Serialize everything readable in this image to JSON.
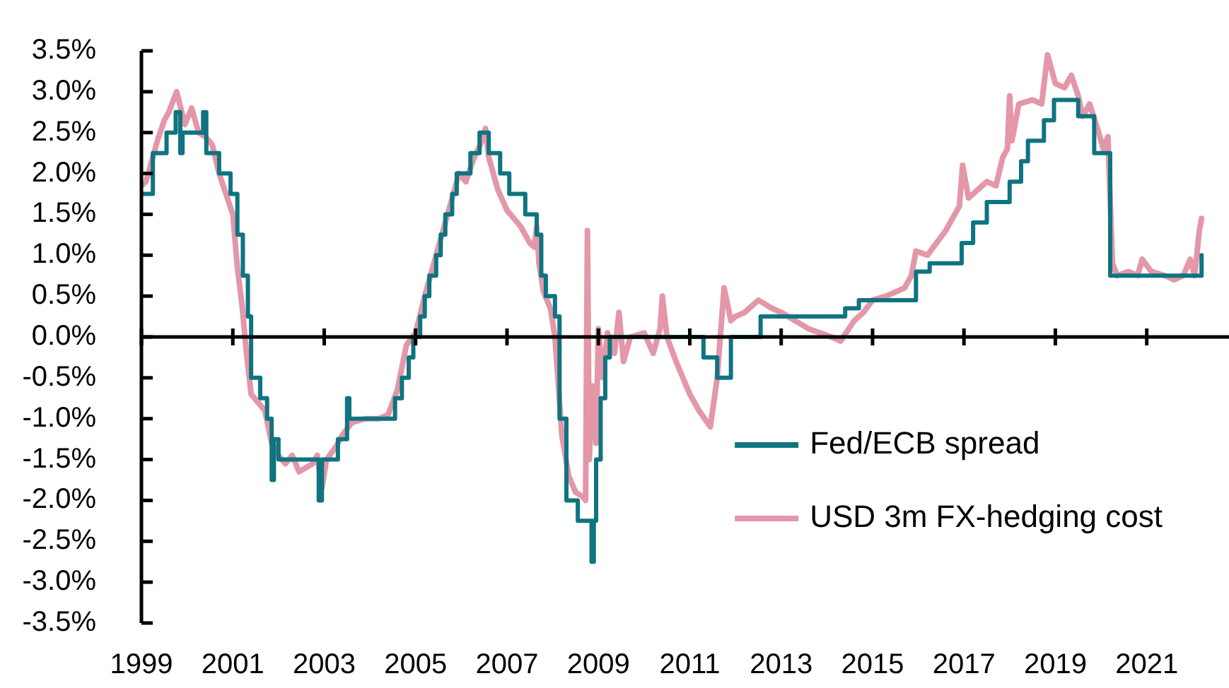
{
  "chart_data": {
    "type": "line",
    "xlim": [
      1999,
      2022.8
    ],
    "xticks": [
      1999,
      2001,
      2003,
      2005,
      2007,
      2009,
      2011,
      2013,
      2015,
      2017,
      2019,
      2021
    ],
    "ylim": [
      -3.5,
      3.5
    ],
    "yticks": [
      {
        "value": -3.5,
        "label": "-3.5%"
      },
      {
        "value": -3.0,
        "label": "-3.0%"
      },
      {
        "value": -2.5,
        "label": "-2.5%"
      },
      {
        "value": -2.0,
        "label": "-2.0%"
      },
      {
        "value": -1.5,
        "label": "-1.5%"
      },
      {
        "value": -1.0,
        "label": "-1.0%"
      },
      {
        "value": -0.5,
        "label": "-0.5%"
      },
      {
        "value": 0.0,
        "label": "0.0%"
      },
      {
        "value": 0.5,
        "label": "0.5%"
      },
      {
        "value": 1.0,
        "label": "1.0%"
      },
      {
        "value": 1.5,
        "label": "1.5%"
      },
      {
        "value": 2.0,
        "label": "2.0%"
      },
      {
        "value": 2.5,
        "label": "2.5%"
      },
      {
        "value": 3.0,
        "label": "3.0%"
      },
      {
        "value": 3.5,
        "label": "3.5%"
      }
    ],
    "grid": false,
    "ref_lines": [
      {
        "axis": "y",
        "value": 0,
        "color": "#000000"
      }
    ],
    "legend": "bottom right",
    "marker": "none",
    "series": [
      {
        "name": "Fed/ECB spread",
        "type": "step",
        "color": "#0f7480",
        "x": [
          1999.0,
          1999.25,
          1999.55,
          1999.75,
          1999.85,
          1999.9,
          2000.35,
          2000.42,
          2000.7,
          2000.95,
          2001.1,
          2001.22,
          2001.33,
          2001.4,
          2001.6,
          2001.75,
          2001.85,
          2001.9,
          2002.0,
          2002.88,
          2002.95,
          2003.3,
          2003.5,
          2003.55,
          2004.55,
          2004.7,
          2004.85,
          2004.95,
          2005.1,
          2005.2,
          2005.3,
          2005.45,
          2005.55,
          2005.65,
          2005.8,
          2005.9,
          2006.2,
          2006.4,
          2006.6,
          2006.85,
          2007.05,
          2007.4,
          2007.65,
          2007.75,
          2007.85,
          2008.05,
          2008.15,
          2008.3,
          2008.55,
          2008.85,
          2008.9,
          2008.95,
          2009.05,
          2009.15,
          2009.25,
          2011.3,
          2011.6,
          2011.9,
          2012.55,
          2014.4,
          2014.7,
          2015.95,
          2016.25,
          2016.95,
          2017.2,
          2017.5,
          2018.0,
          2018.25,
          2018.4,
          2018.75,
          2018.97,
          2019.5,
          2019.85,
          2020.2,
          2022.2
        ],
        "values": [
          1.75,
          2.25,
          2.5,
          2.75,
          2.25,
          2.5,
          2.75,
          2.25,
          2.0,
          1.75,
          1.25,
          0.75,
          0.25,
          -0.5,
          -0.75,
          -1.0,
          -1.75,
          -1.25,
          -1.5,
          -2.0,
          -1.5,
          -1.25,
          -0.75,
          -1.0,
          -0.75,
          -0.5,
          -0.25,
          0.0,
          0.25,
          0.5,
          0.75,
          1.0,
          1.25,
          1.5,
          1.75,
          2.0,
          2.25,
          2.5,
          2.25,
          2.0,
          1.75,
          1.5,
          1.25,
          0.75,
          0.5,
          0.25,
          -1.0,
          -2.0,
          -2.25,
          -2.75,
          -2.25,
          -1.5,
          -0.75,
          -0.25,
          0.0,
          -0.25,
          -0.5,
          0.0,
          0.25,
          0.35,
          0.45,
          0.8,
          0.9,
          1.15,
          1.4,
          1.65,
          1.9,
          2.15,
          2.4,
          2.65,
          2.9,
          2.7,
          2.25,
          0.75,
          1.0
        ]
      },
      {
        "name": "USD 3m FX-hedging cost",
        "type": "line",
        "color": "#e397a8",
        "x": [
          1999.0,
          1999.1,
          1999.2,
          1999.35,
          1999.5,
          1999.6,
          1999.77,
          1999.95,
          2000.1,
          2000.25,
          2000.4,
          2000.55,
          2000.7,
          2000.85,
          2001.0,
          2001.1,
          2001.2,
          2001.3,
          2001.4,
          2001.55,
          2001.7,
          2001.85,
          2002.0,
          2002.15,
          2002.3,
          2002.45,
          2002.6,
          2002.75,
          2002.85,
          2002.95,
          2003.05,
          2003.25,
          2003.4,
          2003.6,
          2003.9,
          2004.2,
          2004.4,
          2004.6,
          2004.8,
          2005.0,
          2005.2,
          2005.4,
          2005.6,
          2005.8,
          2005.95,
          2006.1,
          2006.25,
          2006.45,
          2006.53,
          2006.6,
          2006.8,
          2007.0,
          2007.3,
          2007.5,
          2007.6,
          2007.65,
          2007.7,
          2007.8,
          2007.95,
          2008.05,
          2008.2,
          2008.35,
          2008.5,
          2008.65,
          2008.72,
          2008.76,
          2008.8,
          2008.87,
          2008.95,
          2009.0,
          2009.1,
          2009.2,
          2009.35,
          2009.45,
          2009.55,
          2009.7,
          2010.0,
          2010.2,
          2010.35,
          2010.4,
          2010.5,
          2010.7,
          2011.0,
          2011.2,
          2011.45,
          2011.6,
          2011.75,
          2011.9,
          2012.0,
          2012.2,
          2012.5,
          2012.8,
          2013.0,
          2013.3,
          2013.6,
          2014.1,
          2014.3,
          2014.6,
          2014.8,
          2015.0,
          2015.3,
          2015.7,
          2015.85,
          2015.95,
          2016.2,
          2016.4,
          2016.6,
          2016.8,
          2016.9,
          2016.97,
          2017.1,
          2017.3,
          2017.5,
          2017.7,
          2017.85,
          2017.95,
          2018.0,
          2018.05,
          2018.2,
          2018.5,
          2018.7,
          2018.83,
          2019.0,
          2019.2,
          2019.35,
          2019.5,
          2019.6,
          2019.75,
          2019.95,
          2020.05,
          2020.15,
          2020.25,
          2020.35,
          2020.6,
          2020.8,
          2020.9,
          2021.1,
          2021.4,
          2021.6,
          2021.8,
          2021.95,
          2022.05,
          2022.15,
          2022.2
        ],
        "values": [
          1.85,
          1.9,
          2.1,
          2.4,
          2.65,
          2.75,
          3.0,
          2.6,
          2.8,
          2.5,
          2.45,
          2.35,
          2.0,
          1.75,
          1.5,
          0.85,
          0.4,
          -0.2,
          -0.7,
          -0.8,
          -0.9,
          -1.3,
          -1.45,
          -1.55,
          -1.45,
          -1.65,
          -1.6,
          -1.55,
          -1.45,
          -1.85,
          -1.5,
          -1.35,
          -1.2,
          -1.05,
          -1.0,
          -1.0,
          -0.95,
          -0.65,
          -0.1,
          0.05,
          0.5,
          0.9,
          1.3,
          1.7,
          2.0,
          1.9,
          2.15,
          2.4,
          2.55,
          2.2,
          1.8,
          1.55,
          1.35,
          1.15,
          1.1,
          1.35,
          0.9,
          0.55,
          0.35,
          0.0,
          -1.2,
          -1.7,
          -1.9,
          -1.95,
          -2.0,
          1.3,
          -1.5,
          -0.6,
          -1.3,
          0.1,
          -0.5,
          0.05,
          -0.2,
          0.3,
          -0.3,
          0.0,
          0.05,
          -0.2,
          0.1,
          0.5,
          0.0,
          -0.3,
          -0.7,
          -0.9,
          -1.1,
          -0.5,
          0.6,
          0.2,
          0.25,
          0.3,
          0.45,
          0.35,
          0.3,
          0.2,
          0.1,
          0.0,
          -0.05,
          0.2,
          0.3,
          0.45,
          0.5,
          0.6,
          0.75,
          1.05,
          1.0,
          1.15,
          1.3,
          1.5,
          1.6,
          2.1,
          1.7,
          1.8,
          1.9,
          1.85,
          2.2,
          2.3,
          2.95,
          2.4,
          2.85,
          2.9,
          2.85,
          3.45,
          3.1,
          3.05,
          3.2,
          2.95,
          2.7,
          2.85,
          2.5,
          2.3,
          2.45,
          0.9,
          0.75,
          0.8,
          0.75,
          0.95,
          0.8,
          0.75,
          0.7,
          0.75,
          0.95,
          0.75,
          1.3,
          1.45
        ]
      }
    ]
  }
}
